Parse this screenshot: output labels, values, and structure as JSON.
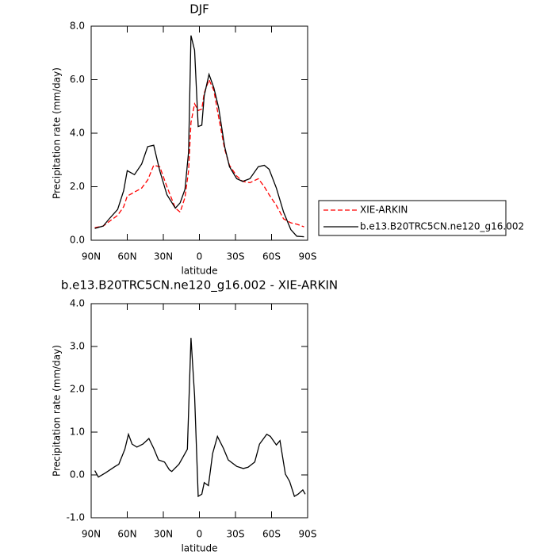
{
  "chart_data": [
    {
      "type": "line",
      "title": "DJF",
      "xlabel": "latitude",
      "ylabel": "Precipitation rate (mm/day)",
      "x": [
        87,
        80,
        75,
        68,
        63,
        60,
        54,
        48,
        43,
        38,
        33,
        27,
        20,
        16,
        12,
        9,
        7,
        4,
        1,
        -2,
        -4,
        -8,
        -12,
        -16,
        -21,
        -25,
        -31,
        -36,
        -42,
        -49,
        -54,
        -58,
        -64,
        -70,
        -76,
        -81,
        -87
      ],
      "series": [
        {
          "name": "XIE-ARKIN",
          "color": "#ff0000",
          "dash": true,
          "values": [
            0.47,
            0.53,
            0.7,
            0.93,
            1.25,
            1.65,
            1.8,
            1.95,
            2.25,
            2.8,
            2.75,
            2.0,
            1.2,
            1.05,
            1.6,
            2.6,
            4.4,
            5.1,
            4.85,
            4.9,
            5.5,
            6.0,
            5.6,
            4.6,
            3.4,
            2.8,
            2.4,
            2.2,
            2.15,
            2.3,
            2.0,
            1.7,
            1.3,
            0.8,
            0.65,
            0.6,
            0.5
          ]
        },
        {
          "name": "b.e13.B20TRC5CN.ne120_g16.002",
          "color": "#000000",
          "dash": false,
          "values": [
            0.44,
            0.53,
            0.8,
            1.15,
            1.85,
            2.6,
            2.45,
            2.85,
            3.5,
            3.55,
            2.6,
            1.7,
            1.2,
            1.4,
            1.9,
            3.3,
            7.65,
            7.1,
            4.25,
            4.3,
            5.4,
            6.2,
            5.7,
            4.95,
            3.5,
            2.75,
            2.3,
            2.2,
            2.3,
            2.75,
            2.8,
            2.65,
            1.95,
            1.05,
            0.4,
            0.15,
            0.13
          ]
        }
      ],
      "xlim": [
        90,
        -90
      ],
      "xticks": [
        {
          "value": 90,
          "label": "90N"
        },
        {
          "value": 60,
          "label": "60N"
        },
        {
          "value": 30,
          "label": "30N"
        },
        0,
        {
          "value": -30,
          "label": "30S"
        },
        {
          "value": -60,
          "label": "60S"
        },
        {
          "value": -90,
          "label": "90S"
        }
      ],
      "ylim": [
        0,
        8
      ],
      "yticks": [
        {
          "value": 0,
          "label": "0.0"
        },
        {
          "value": 2,
          "label": "2.0"
        },
        {
          "value": 4,
          "label": "4.0"
        },
        {
          "value": 6,
          "label": "6.0"
        },
        {
          "value": 8,
          "label": "8.0"
        }
      ],
      "legend": "right"
    },
    {
      "type": "line",
      "title": "b.e13.B20TRC5CN.ne120_g16.002 - XIE-ARKIN",
      "xlabel": "latitude",
      "ylabel": "Precipitation rate (mm/day)",
      "x": [
        87,
        84,
        78,
        70,
        67,
        62,
        59,
        56,
        52,
        47,
        42,
        38,
        34,
        29,
        25,
        23,
        17,
        14,
        10,
        7,
        4,
        1,
        -2,
        -4,
        -7.5,
        -11,
        -15,
        -20,
        -24,
        -31,
        -36.5,
        -40.5,
        -46,
        -50,
        -56,
        -59,
        -64,
        -67,
        -71.5,
        -75,
        -79,
        -82,
        -86,
        -88
      ],
      "series": [
        {
          "color": "#000000",
          "dash": false,
          "values": [
            0.1,
            -0.05,
            0.05,
            0.2,
            0.25,
            0.6,
            0.95,
            0.72,
            0.65,
            0.72,
            0.85,
            0.62,
            0.35,
            0.3,
            0.12,
            0.08,
            0.25,
            0.4,
            0.6,
            3.2,
            1.85,
            -0.5,
            -0.45,
            -0.18,
            -0.25,
            0.5,
            0.9,
            0.62,
            0.35,
            0.2,
            0.15,
            0.18,
            0.3,
            0.72,
            0.95,
            0.9,
            0.7,
            0.8,
            0.02,
            -0.15,
            -0.5,
            -0.45,
            -0.35,
            -0.45
          ]
        }
      ],
      "xlim": [
        90,
        -90
      ],
      "xticks": [
        {
          "value": 90,
          "label": "90N"
        },
        {
          "value": 60,
          "label": "60N"
        },
        {
          "value": 30,
          "label": "30N"
        },
        0,
        {
          "value": -30,
          "label": "30S"
        },
        {
          "value": -60,
          "label": "60S"
        },
        {
          "value": -90,
          "label": "90S"
        }
      ],
      "ylim": [
        -1,
        4
      ],
      "yticks": [
        {
          "value": -1,
          "label": "-1.0"
        },
        {
          "value": 0,
          "label": "0.0"
        },
        {
          "value": 1,
          "label": "1.0"
        },
        {
          "value": 2,
          "label": "2.0"
        },
        {
          "value": 3,
          "label": "3.0"
        },
        {
          "value": 4,
          "label": "4.0"
        }
      ]
    }
  ]
}
